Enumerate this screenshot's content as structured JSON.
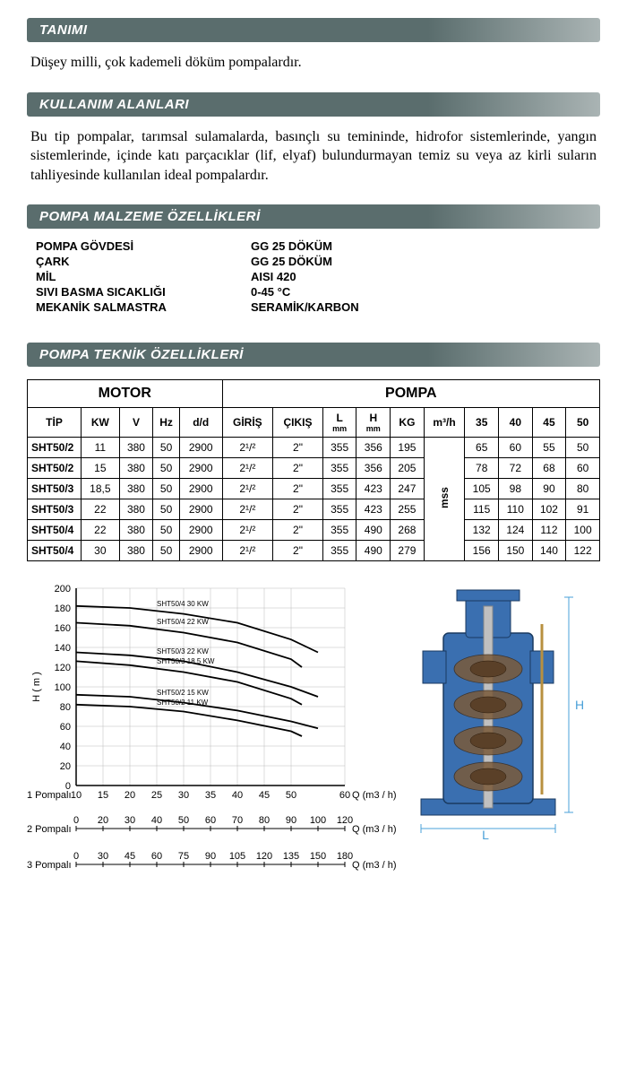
{
  "sections": {
    "definition_title": "TANIMI",
    "definition_text": "Düşey milli, çok kademeli döküm pompalardır.",
    "usage_title": "KULLANIM ALANLARI",
    "usage_text": "Bu tip pompalar, tarımsal sulamalarda, basınçlı su temininde, hidrofor sistemlerinde, yangın sistemlerinde, içinde katı parçacıklar (lif, elyaf) bulundurmayan temiz su veya az kirli suların tahliyesinde kullanılan ideal pompalardır.",
    "materials_title": "POMPA MALZEME ÖZELLİKLERİ",
    "tech_title": "POMPA TEKNİK ÖZELLİKLERİ"
  },
  "materials": [
    {
      "label": "POMPA GÖVDESİ",
      "value": "GG 25 DÖKÜM"
    },
    {
      "label": "ÇARK",
      "value": "GG 25 DÖKÜM"
    },
    {
      "label": "MİL",
      "value": "AISI 420"
    },
    {
      "label": "SIVI BASMA SICAKLIĞI",
      "value": "0-45 °C"
    },
    {
      "label": "MEKANİK SALMASTRA",
      "value": "SERAMİK/KARBON"
    }
  ],
  "tech_headers": {
    "motor": "MOTOR",
    "pompa": "POMPA",
    "tip": "TİP",
    "kw": "KW",
    "v": "V",
    "hz": "Hz",
    "dd": "d/d",
    "giris": "GİRİŞ",
    "cikis": "ÇIKIŞ",
    "l": "L",
    "h": "H",
    "kg": "KG",
    "m3h": "m³/h",
    "mm": "mm",
    "mss": "mss",
    "q35": "35",
    "q40": "40",
    "q45": "45",
    "q50": "50"
  },
  "tech_rows": [
    {
      "tip": "SHT50/2",
      "kw": "11",
      "v": "380",
      "hz": "50",
      "dd": "2900",
      "giris": "2¹/²",
      "cikis": "2\"",
      "l": "355",
      "h": "356",
      "kg": "195",
      "q35": "65",
      "q40": "60",
      "q45": "55",
      "q50": "50"
    },
    {
      "tip": "SHT50/2",
      "kw": "15",
      "v": "380",
      "hz": "50",
      "dd": "2900",
      "giris": "2¹/²",
      "cikis": "2\"",
      "l": "355",
      "h": "356",
      "kg": "205",
      "q35": "78",
      "q40": "72",
      "q45": "68",
      "q50": "60"
    },
    {
      "tip": "SHT50/3",
      "kw": "18,5",
      "v": "380",
      "hz": "50",
      "dd": "2900",
      "giris": "2¹/²",
      "cikis": "2\"",
      "l": "355",
      "h": "423",
      "kg": "247",
      "q35": "105",
      "q40": "98",
      "q45": "90",
      "q50": "80"
    },
    {
      "tip": "SHT50/3",
      "kw": "22",
      "v": "380",
      "hz": "50",
      "dd": "2900",
      "giris": "2¹/²",
      "cikis": "2\"",
      "l": "355",
      "h": "423",
      "kg": "255",
      "q35": "115",
      "q40": "110",
      "q45": "102",
      "q50": "91"
    },
    {
      "tip": "SHT50/4",
      "kw": "22",
      "v": "380",
      "hz": "50",
      "dd": "2900",
      "giris": "2¹/²",
      "cikis": "2\"",
      "l": "355",
      "h": "490",
      "kg": "268",
      "q35": "132",
      "q40": "124",
      "q45": "112",
      "q50": "100"
    },
    {
      "tip": "SHT50/4",
      "kw": "30",
      "v": "380",
      "hz": "50",
      "dd": "2900",
      "giris": "2¹/²",
      "cikis": "2\"",
      "l": "355",
      "h": "490",
      "kg": "279",
      "q35": "156",
      "q40": "150",
      "q45": "140",
      "q50": "122"
    }
  ],
  "chart": {
    "ylabel": "H ( m )",
    "ylim": [
      0,
      200
    ],
    "ytick_step": 20,
    "x1_label": "1 Pompalı",
    "x1_ticks": [
      10,
      15,
      20,
      25,
      30,
      35,
      40,
      45,
      50,
      60
    ],
    "x1_unit": "Q (m3 / h)",
    "x2_label": "2 Pompalı",
    "x2_ticks": [
      0,
      20,
      30,
      40,
      50,
      60,
      70,
      80,
      90,
      100,
      120
    ],
    "x3_label": "3 Pompalı",
    "x3_ticks": [
      0,
      30,
      45,
      60,
      75,
      90,
      105,
      120,
      135,
      150,
      180
    ],
    "background_color": "#ffffff",
    "grid_color": "#bbbbbb",
    "axis_color": "#000000",
    "curve_color": "#000000",
    "curve_width": 1.8,
    "curves": [
      {
        "label": "SHT50/4 30 KW",
        "points": [
          [
            10,
            182
          ],
          [
            20,
            180
          ],
          [
            30,
            174
          ],
          [
            40,
            165
          ],
          [
            50,
            148
          ],
          [
            55,
            135
          ]
        ]
      },
      {
        "label": "SHT50/4 22 KW",
        "points": [
          [
            10,
            165
          ],
          [
            20,
            162
          ],
          [
            30,
            155
          ],
          [
            40,
            145
          ],
          [
            50,
            128
          ],
          [
            52,
            120
          ]
        ]
      },
      {
        "label": "SHT50/3 22 KW",
        "points": [
          [
            10,
            135
          ],
          [
            20,
            132
          ],
          [
            30,
            126
          ],
          [
            40,
            115
          ],
          [
            50,
            100
          ],
          [
            55,
            90
          ]
        ]
      },
      {
        "label": "SHT50/3 18.5 KW",
        "points": [
          [
            10,
            126
          ],
          [
            20,
            122
          ],
          [
            30,
            115
          ],
          [
            40,
            105
          ],
          [
            50,
            88
          ],
          [
            52,
            82
          ]
        ]
      },
      {
        "label": "SHT50/2 15 KW",
        "points": [
          [
            10,
            92
          ],
          [
            20,
            90
          ],
          [
            30,
            84
          ],
          [
            40,
            76
          ],
          [
            50,
            65
          ],
          [
            55,
            58
          ]
        ]
      },
      {
        "label": "SHT50/2 11 KW",
        "points": [
          [
            10,
            82
          ],
          [
            20,
            80
          ],
          [
            30,
            75
          ],
          [
            40,
            66
          ],
          [
            50,
            55
          ],
          [
            52,
            50
          ]
        ]
      }
    ]
  },
  "pump_image": {
    "body_color": "#3a6fb0",
    "shaft_color": "#c0c0c0",
    "internal_color": "#7a5a3a",
    "dim_h": "H",
    "dim_l": "L"
  }
}
